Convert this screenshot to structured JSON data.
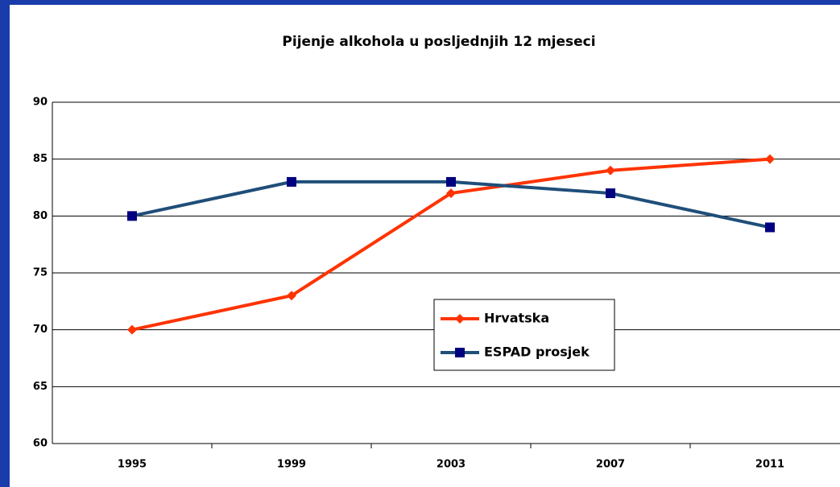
{
  "chart_data": {
    "type": "line",
    "title": "Pijenje alkohola u posljednjih 12 mjeseci",
    "categories": [
      "1995",
      "1999",
      "2003",
      "2007",
      "2011"
    ],
    "series": [
      {
        "name": "Hrvatska",
        "color": "#ff3300",
        "marker": "diamond",
        "values": [
          70,
          73,
          82,
          84,
          85
        ]
      },
      {
        "name": "ESPAD prosjek",
        "color": "#1f4e79",
        "marker": "square",
        "marker_color": "#000080",
        "values": [
          80,
          83,
          83,
          82,
          79
        ]
      }
    ],
    "ylim": [
      60,
      90
    ],
    "yticks": [
      60,
      65,
      70,
      75,
      80,
      85,
      90
    ],
    "grid": true
  }
}
